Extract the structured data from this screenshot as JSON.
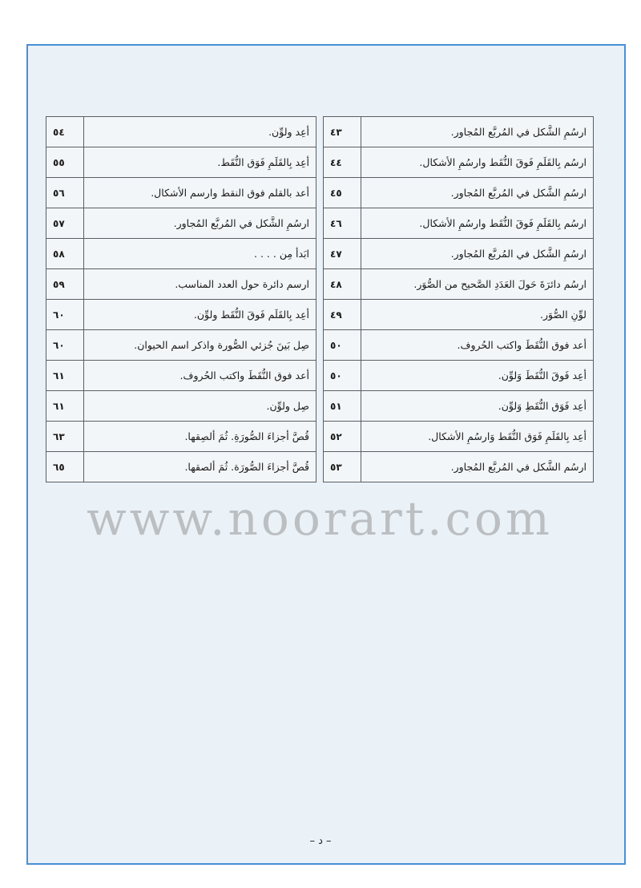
{
  "right_table": [
    {
      "num": "٤٣",
      "text": "ارسُمِ الشَّكل في المُربَّع المُجاور."
    },
    {
      "num": "٤٤",
      "text": "ارسُم بِالقَلَمِ فَوقَ النُّقَط وارسُمِ الأشكال."
    },
    {
      "num": "٤٥",
      "text": "ارسُمِ الشَّكل في المُربَّع المُجاور."
    },
    {
      "num": "٤٦",
      "text": "ارسُم بِالقَلَمِ فَوقَ النُّقَط وارسُمِ الأشكال."
    },
    {
      "num": "٤٧",
      "text": "ارسُمِ الشَّكل في المُربَّع المُجاور."
    },
    {
      "num": "٤٨",
      "text": "ارسُم دائرَةَ حَولَ العَدَدِ الصَّحيح من الصُّوَر."
    },
    {
      "num": "٤٩",
      "text": "لوِّنِ الصُّوَر."
    },
    {
      "num": "٥٠",
      "text": "أعد فوق النُّقَطَ واكتب الحُروف."
    },
    {
      "num": "٥٠",
      "text": "أعِد فَوقَ النُّقَطَ وَلوِّن."
    },
    {
      "num": "٥١",
      "text": "أعِد فَوَق النُّقَطِ وَلوِّن."
    },
    {
      "num": "٥٢",
      "text": "أعِد بِالقَلَمِ فَوَق النُّقَط وَارسُمِ الأشكال."
    },
    {
      "num": "٥٣",
      "text": "ارسُم الشَّكل في المُربَّع المُجاور."
    }
  ],
  "left_table": [
    {
      "num": "٥٤",
      "text": "أعِد ولوِّن."
    },
    {
      "num": "٥٥",
      "text": "أعِد بِالقَلَمِ فَوَق النُّقَط."
    },
    {
      "num": "٥٦",
      "text": "أعد بالقلم فوق النقط وارسم الأشكال."
    },
    {
      "num": "٥٧",
      "text": "ارسُمِ الشَّكل في المُربَّع المُجاور."
    },
    {
      "num": "٥٨",
      "text": "ابَدأ مِن . . . ."
    },
    {
      "num": "٥٩",
      "text": "ارسم دائرة حول العدد المناسب."
    },
    {
      "num": "٦٠",
      "text": "أعِد بِالقَلَم فَوقَ النُّقَط ولوِّن."
    },
    {
      "num": "٦٠",
      "text": "صِل بَينَ جُزئي الصُّورة واذكر اسم الحيوان."
    },
    {
      "num": "٦١",
      "text": "أعد فوق النُّقَطَ واكتب الحُروف."
    },
    {
      "num": "٦١",
      "text": "صِل ولوِّن."
    },
    {
      "num": "٦٣",
      "text": "قُصَّ أجزاءَ الصُّورَةِ. ثُمَ ألصِقها."
    },
    {
      "num": "٦٥",
      "text": "قُصَّ أجزاءَ الصُّورَة. ثُمَ ألصقها."
    }
  ],
  "watermark": "www.noorart.com",
  "page_number": "– د –",
  "colors": {
    "frame_border": "#4a8fd6",
    "frame_background": "#eaf2f8"
  }
}
